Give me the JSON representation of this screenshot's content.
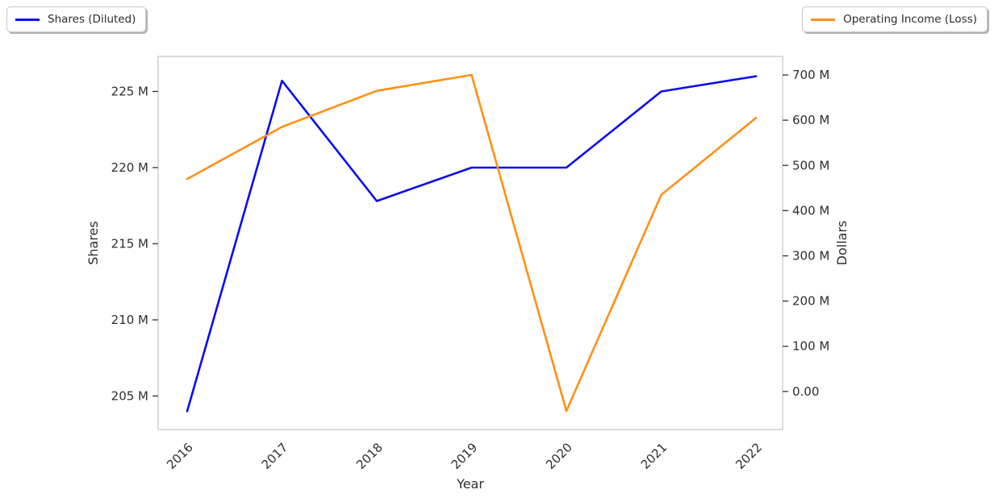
{
  "legends": [
    {
      "label": "Shares (Diluted)",
      "position": "top-left"
    },
    {
      "label": "Operating Income (Loss)",
      "position": "top-right"
    }
  ],
  "chart_data": {
    "type": "line",
    "title": "",
    "xlabel": "Year",
    "x_categories": [
      "2016",
      "2017",
      "2018",
      "2019",
      "2020",
      "2021",
      "2022"
    ],
    "series": [
      {
        "name": "Shares (Diluted)",
        "axis": "left",
        "color": "#0a0af0",
        "values_millions": [
          204.0,
          225.7,
          217.8,
          220.0,
          220.0,
          225.0,
          226.0
        ]
      },
      {
        "name": "Operating Income (Loss)",
        "axis": "right",
        "color": "#ff9015",
        "values_millions": [
          470,
          585,
          665,
          700,
          -43,
          435,
          605
        ]
      }
    ],
    "left_axis": {
      "label": "Shares",
      "tick_labels": [
        "205 M",
        "210 M",
        "215 M",
        "220 M",
        "225 M"
      ],
      "tick_values_millions": [
        205,
        210,
        215,
        220,
        225
      ],
      "range_millions": [
        202.8,
        227.3
      ]
    },
    "right_axis": {
      "label": "Dollars",
      "tick_labels": [
        "0.00",
        "100 M",
        "200 M",
        "300 M",
        "400 M",
        "500 M",
        "600 M",
        "700 M"
      ],
      "tick_values_millions": [
        0,
        100,
        200,
        300,
        400,
        500,
        600,
        700
      ],
      "range_millions": [
        -84,
        741
      ]
    },
    "x_range_categories": [
      -0.306,
      6.28
    ],
    "grid": false,
    "legend_position": [
      "upper left",
      "upper right"
    ]
  },
  "colors": {
    "spine": "#cccccc",
    "tick": "#333333",
    "text": "#2e2e2e",
    "background": "#ffffff"
  }
}
